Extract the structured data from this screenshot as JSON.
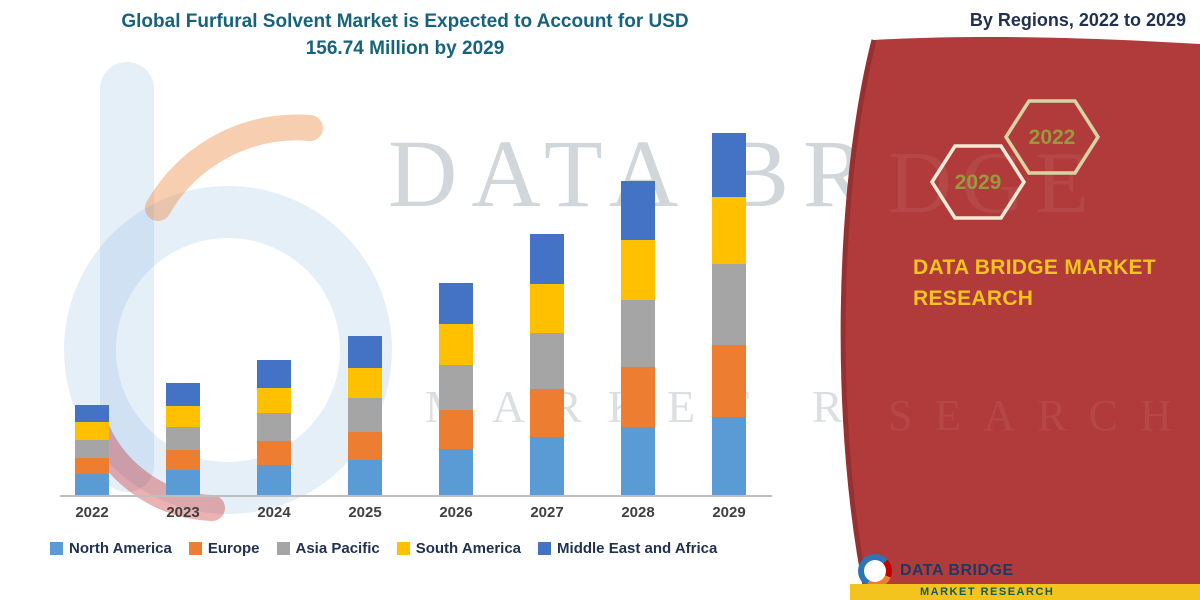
{
  "title": {
    "line1": "Global Furfural Solvent Market is Expected to Account for USD",
    "line2": "156.74 Million by 2029"
  },
  "subtitle": "By Regions, 2022 to 2029",
  "banner": {
    "color": "#B13A3A",
    "hexagons": [
      {
        "year": "2029"
      },
      {
        "year": "2022"
      }
    ],
    "brand_line1": "DATA BRIDGE MARKET",
    "brand_line2": "RESEARCH"
  },
  "watermark": {
    "line1": "DATA BRI",
    "line2": "MARKET RE",
    "red1": "DGE",
    "red2": "SEARCH"
  },
  "footer_logo": {
    "name": "DATA BRIDGE",
    "strip_text": "MARKET RESEARCH"
  },
  "chart_data": {
    "type": "bar",
    "stacked": true,
    "title": "Global Furfural Solvent Market is Expected to Account for USD 156.74 Million by 2029",
    "unit": "USD Million",
    "categories": [
      "2022",
      "2023",
      "2024",
      "2025",
      "2026",
      "2027",
      "2028",
      "2029"
    ],
    "series": [
      {
        "name": "North America",
        "color": "#5B9BD5",
        "values": [
          9.0,
          11.0,
          13.0,
          15.0,
          20.0,
          25.0,
          29.5,
          34.0
        ]
      },
      {
        "name": "Europe",
        "color": "#ED7D31",
        "values": [
          7.0,
          8.5,
          10.5,
          12.5,
          17.0,
          21.0,
          26.0,
          31.0
        ]
      },
      {
        "name": "Asia Pacific",
        "color": "#A5A5A5",
        "values": [
          8.0,
          10.0,
          12.0,
          14.5,
          19.5,
          24.0,
          29.0,
          35.0
        ]
      },
      {
        "name": "South America",
        "color": "#FFC000",
        "values": [
          7.5,
          9.0,
          11.0,
          13.0,
          17.5,
          21.5,
          26.0,
          29.0
        ]
      },
      {
        "name": "Middle East and Africa",
        "color": "#4472C4",
        "values": [
          7.5,
          10.0,
          12.0,
          14.0,
          18.0,
          21.5,
          25.5,
          27.74
        ]
      }
    ],
    "totals": [
      39.0,
      48.5,
      58.5,
      69.0,
      92.0,
      113.0,
      136.0,
      156.74
    ],
    "ylim": [
      0,
      170
    ],
    "gridlines": false,
    "legend_position": "bottom"
  }
}
